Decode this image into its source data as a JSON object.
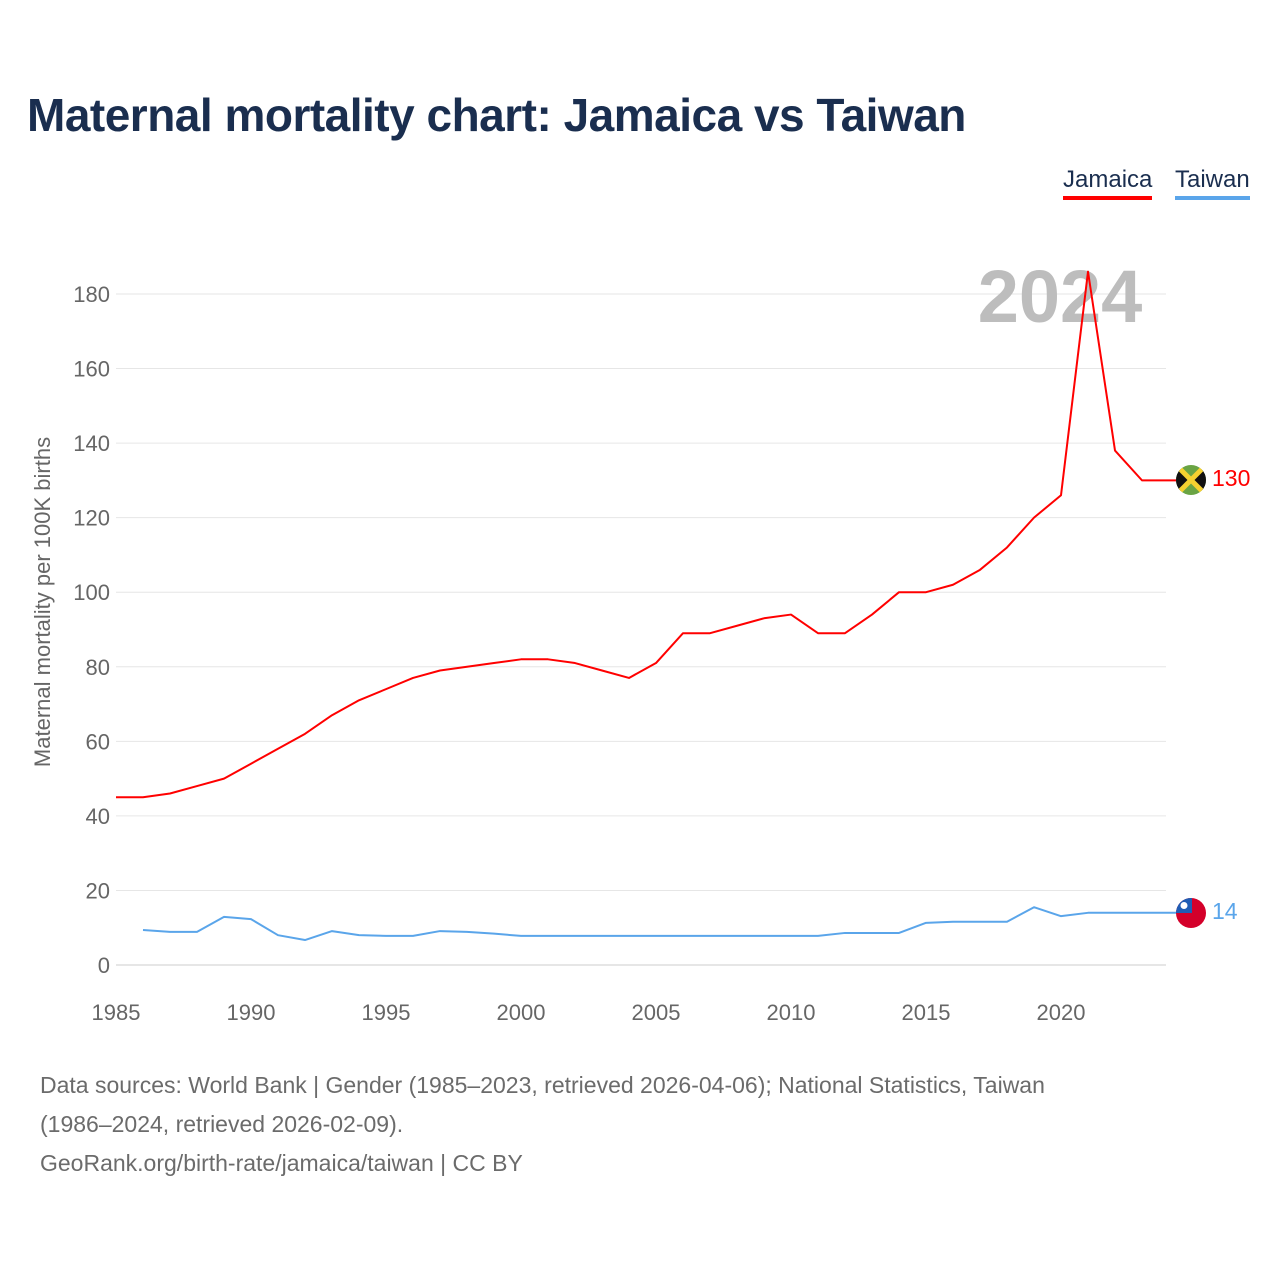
{
  "title": "Maternal mortality chart: Jamaica vs Taiwan",
  "footer": {
    "line1": "Data sources: World Bank | Gender (1985–2023, retrieved 2026-04-06); National Statistics, Taiwan",
    "line2": "(1986–2024, retrieved 2026-02-09).",
    "line3": "GeoRank.org/birth-rate/jamaica/taiwan | CC BY"
  },
  "chart_data": {
    "type": "line",
    "title": "Maternal mortality chart: Jamaica vs Taiwan",
    "ylabel": "Maternal mortality per 100K births",
    "xlabel": "",
    "year_label": "2024",
    "ylim": [
      0,
      190
    ],
    "xlim": [
      1985,
      2024
    ],
    "yticks": [
      0,
      20,
      40,
      60,
      80,
      100,
      120,
      140,
      160,
      180
    ],
    "xticks": [
      1985,
      1990,
      1995,
      2000,
      2005,
      2010,
      2015,
      2020
    ],
    "legend_placement": "top-right",
    "series": [
      {
        "name": "Jamaica",
        "color": "#ff0000",
        "end_label": "130",
        "x": [
          1985,
          1986,
          1987,
          1988,
          1989,
          1990,
          1991,
          1992,
          1993,
          1994,
          1995,
          1996,
          1997,
          1998,
          1999,
          2000,
          2001,
          2002,
          2003,
          2004,
          2005,
          2006,
          2007,
          2008,
          2009,
          2010,
          2011,
          2012,
          2013,
          2014,
          2015,
          2016,
          2017,
          2018,
          2019,
          2020,
          2021,
          2022,
          2023
        ],
        "values": [
          45,
          45,
          46,
          48,
          50,
          54,
          58,
          62,
          67,
          71,
          74,
          77,
          79,
          80,
          81,
          82,
          82,
          81,
          79,
          77,
          81,
          89,
          89,
          91,
          93,
          94,
          89,
          89,
          94,
          100,
          100,
          102,
          106,
          112,
          120,
          126,
          186,
          138,
          130
        ]
      },
      {
        "name": "Taiwan",
        "color": "#5aa5ea",
        "end_label": "14",
        "x": [
          1986,
          1987,
          1988,
          1989,
          1990,
          1991,
          1992,
          1993,
          1994,
          1995,
          1996,
          1997,
          1998,
          1999,
          2000,
          2001,
          2002,
          2003,
          2004,
          2005,
          2006,
          2007,
          2008,
          2009,
          2010,
          2011,
          2012,
          2013,
          2014,
          2015,
          2016,
          2017,
          2018,
          2019,
          2020,
          2021,
          2022,
          2023,
          2024
        ],
        "values": [
          9.4,
          8.9,
          8.9,
          12.9,
          12.3,
          8.0,
          6.7,
          9.1,
          8.0,
          7.8,
          7.8,
          9.1,
          8.9,
          8.4,
          7.8,
          7.8,
          7.8,
          7.8,
          7.8,
          7.8,
          7.8,
          7.8,
          7.8,
          7.8,
          7.8,
          7.8,
          8.6,
          8.6,
          8.6,
          11.3,
          11.6,
          11.6,
          11.6,
          15.5,
          13.1,
          14,
          14,
          14,
          14
        ]
      }
    ]
  }
}
